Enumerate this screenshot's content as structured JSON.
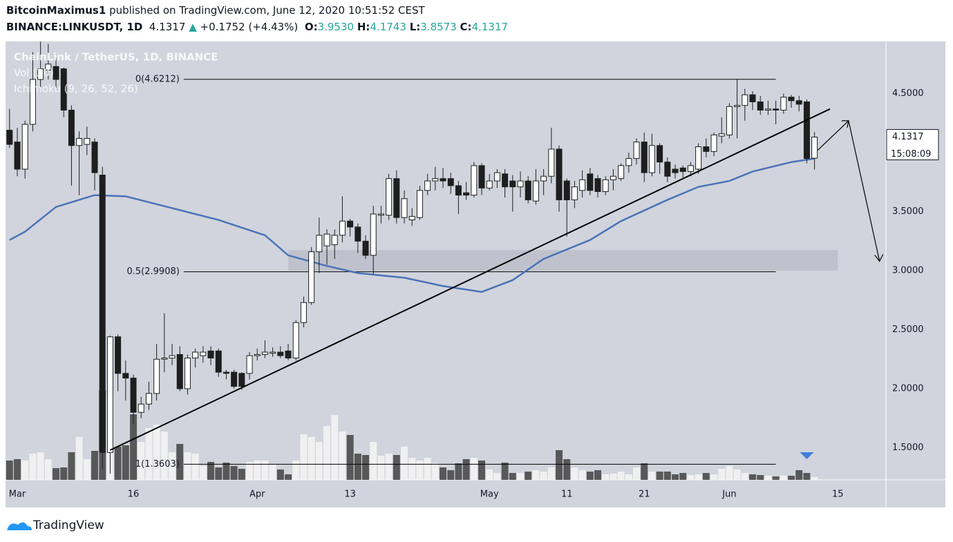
{
  "header": {
    "author": "BitcoinMaximus1",
    "published": "published on TradingView.com, June 12, 2020 10:51:52 CEST",
    "symbol": "BINANCE:LINKUSDT, 1D",
    "last": "4.1317",
    "change": "+0.1752 (+4.43%)",
    "o_label": "O:",
    "o": "3.9530",
    "h_label": "H:",
    "h": "4.1743",
    "l_label": "L:",
    "l": "3.8573",
    "c_label": "C:",
    "c": "4.1317"
  },
  "footer": {
    "brand": "TradingView"
  },
  "chart_data": {
    "type": "candlestick",
    "title": "ChainLink / TetherUS, 1D, BINANCE",
    "indicators": [
      "Vol (20)",
      "Ichimoku (9, 26, 52, 26)"
    ],
    "countdown": "15:08:09",
    "x": [
      -1,
      0,
      1,
      2,
      3,
      4,
      5,
      6,
      7,
      8,
      9,
      10,
      11,
      12,
      13,
      14,
      15,
      16,
      17,
      18,
      19,
      20,
      21,
      22,
      23,
      24,
      25,
      26,
      27,
      28,
      29,
      30,
      31,
      32,
      33,
      34,
      35,
      36,
      37,
      38,
      39,
      40,
      41,
      42,
      43,
      44,
      45,
      46,
      47,
      48,
      49,
      50,
      51,
      52,
      53,
      54,
      55,
      56,
      57,
      58,
      59,
      60,
      61,
      62,
      63,
      64,
      65,
      66,
      67,
      68,
      69,
      70,
      71,
      72,
      73,
      74,
      75,
      76,
      77,
      78,
      79,
      80,
      81,
      82,
      83,
      84,
      85,
      86,
      87,
      88,
      89,
      90,
      91,
      92,
      93,
      94,
      95,
      96,
      97,
      98,
      99,
      100,
      101,
      102,
      103
    ],
    "open": [
      4.19,
      4.09,
      3.86,
      4.24,
      4.62,
      4.7,
      4.73,
      4.71,
      4.36,
      4.06,
      4.07,
      4.09,
      3.81,
      1.46,
      2.44,
      2.13,
      2.09,
      1.8,
      1.87,
      1.96,
      2.25,
      2.26,
      2.29,
      2.0,
      2.26,
      2.28,
      2.32,
      2.32,
      2.14,
      2.14,
      2.13,
      2.13,
      2.28,
      2.29,
      2.3,
      2.31,
      2.32,
      2.26,
      2.56,
      2.73,
      3.16,
      3.21,
      3.22,
      3.3,
      3.42,
      3.37,
      3.25,
      3.13,
      3.47,
      3.47,
      3.78,
      3.45,
      3.43,
      3.45,
      3.68,
      3.76,
      3.78,
      3.78,
      3.72,
      3.66,
      3.64,
      3.89,
      3.7,
      3.76,
      3.82,
      3.76,
      3.71,
      3.76,
      3.59,
      3.76,
      3.8,
      4.03,
      3.76,
      3.6,
      3.68,
      3.82,
      3.78,
      3.67,
      3.77,
      3.78,
      3.89,
      3.95,
      4.09,
      3.83,
      4.06,
      3.92,
      3.86,
      3.87,
      3.84,
      3.86,
      4.05,
      4.01,
      4.14,
      4.15,
      4.39,
      4.4,
      4.49,
      4.43,
      4.36,
      4.37,
      4.36,
      4.47,
      4.44,
      4.43,
      3.953
    ],
    "high": [
      4.37,
      4.21,
      4.27,
      4.85,
      4.94,
      4.92,
      4.8,
      4.72,
      4.4,
      4.18,
      4.22,
      4.12,
      3.88,
      2.45,
      2.46,
      2.24,
      2.12,
      1.93,
      2.06,
      2.38,
      2.64,
      2.38,
      2.36,
      2.29,
      2.34,
      2.36,
      2.36,
      2.34,
      2.16,
      2.16,
      2.14,
      2.31,
      2.34,
      2.41,
      2.35,
      2.36,
      2.38,
      2.58,
      2.78,
      3.2,
      3.45,
      3.35,
      3.35,
      3.63,
      3.44,
      3.4,
      3.3,
      3.55,
      3.55,
      3.82,
      3.85,
      3.68,
      3.53,
      3.72,
      3.82,
      3.88,
      3.87,
      3.83,
      3.76,
      3.75,
      3.92,
      3.91,
      3.82,
      3.86,
      3.86,
      3.81,
      3.84,
      3.8,
      3.86,
      3.86,
      4.21,
      4.06,
      3.78,
      3.76,
      3.85,
      3.87,
      3.81,
      3.8,
      3.86,
      3.91,
      4.0,
      4.12,
      4.17,
      4.16,
      4.08,
      3.96,
      3.9,
      3.89,
      3.92,
      4.08,
      4.12,
      4.17,
      4.3,
      4.42,
      4.62,
      4.54,
      4.52,
      4.48,
      4.44,
      4.44,
      4.5,
      4.49,
      4.48,
      4.45,
      4.1743
    ],
    "low": [
      4.04,
      3.8,
      3.78,
      4.18,
      4.55,
      4.62,
      4.55,
      4.3,
      3.72,
      3.64,
      3.98,
      3.68,
      1.32,
      1.28,
      1.98,
      1.9,
      1.7,
      1.75,
      1.82,
      1.9,
      2.14,
      2.2,
      1.98,
      1.95,
      2.18,
      2.22,
      2.2,
      2.1,
      2.08,
      2.0,
      1.99,
      2.08,
      2.24,
      2.26,
      2.27,
      2.26,
      2.24,
      2.24,
      2.52,
      2.71,
      2.98,
      3.05,
      3.1,
      3.24,
      3.29,
      3.15,
      3.1,
      2.97,
      3.4,
      3.43,
      3.4,
      3.4,
      3.38,
      3.43,
      3.64,
      3.68,
      3.7,
      3.65,
      3.48,
      3.6,
      3.62,
      3.64,
      3.68,
      3.7,
      3.62,
      3.5,
      3.62,
      3.57,
      3.56,
      3.64,
      3.74,
      3.5,
      3.29,
      3.53,
      3.62,
      3.64,
      3.62,
      3.64,
      3.68,
      3.76,
      3.83,
      3.9,
      3.75,
      3.8,
      3.82,
      3.75,
      3.78,
      3.79,
      3.8,
      3.82,
      3.96,
      3.97,
      4.08,
      4.12,
      4.12,
      4.27,
      4.36,
      4.32,
      4.32,
      4.24,
      4.33,
      4.38,
      4.35,
      3.91,
      3.8573
    ],
    "close": [
      4.07,
      3.86,
      4.24,
      4.62,
      4.71,
      4.75,
      4.62,
      4.36,
      4.06,
      4.12,
      4.12,
      3.83,
      1.46,
      2.44,
      2.13,
      2.09,
      1.8,
      1.87,
      1.96,
      2.25,
      2.26,
      2.28,
      2.0,
      2.26,
      2.31,
      2.31,
      2.26,
      2.14,
      2.13,
      2.02,
      2.02,
      2.28,
      2.29,
      2.31,
      2.31,
      2.28,
      2.26,
      2.56,
      2.73,
      3.16,
      3.3,
      3.31,
      3.3,
      3.42,
      3.37,
      3.25,
      3.13,
      3.48,
      3.48,
      3.78,
      3.45,
      3.61,
      3.46,
      3.68,
      3.76,
      3.78,
      3.76,
      3.72,
      3.64,
      3.64,
      3.89,
      3.7,
      3.76,
      3.83,
      3.71,
      3.71,
      3.76,
      3.6,
      3.76,
      3.8,
      4.03,
      3.6,
      3.6,
      3.71,
      3.77,
      3.68,
      3.67,
      3.77,
      3.8,
      3.89,
      3.95,
      4.09,
      3.83,
      4.06,
      3.92,
      3.8,
      3.83,
      3.84,
      3.89,
      4.05,
      4.01,
      4.15,
      4.16,
      4.39,
      4.4,
      4.49,
      4.43,
      4.36,
      4.37,
      4.36,
      4.47,
      4.44,
      4.41,
      3.95,
      4.1317
    ],
    "volume": [
      28,
      30,
      28,
      38,
      40,
      30,
      17,
      18,
      40,
      62,
      30,
      42,
      130,
      125,
      48,
      50,
      95,
      55,
      75,
      80,
      70,
      40,
      52,
      40,
      38,
      20,
      26,
      18,
      25,
      20,
      16,
      26,
      28,
      28,
      22,
      15,
      8,
      28,
      66,
      62,
      55,
      78,
      94,
      70,
      65,
      38,
      36,
      55,
      35,
      38,
      36,
      48,
      32,
      28,
      32,
      24,
      18,
      14,
      24,
      30,
      32,
      28,
      15,
      10,
      25,
      10,
      10,
      12,
      14,
      12,
      18,
      43,
      30,
      18,
      14,
      12,
      14,
      8,
      9,
      12,
      8,
      18,
      24,
      12,
      12,
      12,
      8,
      10,
      7,
      8,
      10,
      8,
      16,
      20,
      15,
      10,
      8,
      7,
      6,
      5,
      6,
      6,
      14,
      10,
      4
    ],
    "candle_colors": {
      "up": "#ffffff",
      "down": "#1e1e1e"
    },
    "volume_colors": {
      "up": "#f3f3f3",
      "down": "#4a4a4a"
    },
    "ma": {
      "color": "#4a72b8",
      "x": [
        -1,
        1,
        5,
        10,
        14,
        20,
        26,
        32,
        35,
        40,
        44,
        50,
        55,
        60,
        64,
        68,
        74,
        78,
        84,
        88,
        92,
        95,
        100,
        103
      ],
      "values": [
        3.26,
        3.33,
        3.54,
        3.64,
        3.63,
        3.53,
        3.43,
        3.3,
        3.13,
        3.04,
        2.98,
        2.94,
        2.87,
        2.82,
        2.92,
        3.1,
        3.26,
        3.42,
        3.6,
        3.71,
        3.76,
        3.84,
        3.92,
        3.95
      ]
    },
    "fib_levels": [
      {
        "label": "0(4.6212)",
        "value": 4.6212
      },
      {
        "label": "0.5(2.9908)",
        "value": 2.9908
      },
      {
        "label": "1(1.3603)",
        "value": 1.3603
      }
    ],
    "fib_x": [
      21.5,
      98
    ],
    "zone": {
      "x": [
        35,
        106
      ],
      "y": [
        3.0,
        3.175
      ]
    },
    "trendline": {
      "x": [
        12,
        105
      ],
      "y": [
        1.48,
        4.37
      ]
    },
    "projection": {
      "x": [
        103.4,
        107.4,
        111.4
      ],
      "y": [
        4.02,
        4.27,
        3.08
      ]
    },
    "xlim": [
      -1.52,
      112.23
    ],
    "ylim": [
      1.228,
      4.942
    ],
    "xticks": [
      {
        "value": 0,
        "label": "Mar"
      },
      {
        "value": 15,
        "label": "16"
      },
      {
        "value": 31,
        "label": "Apr"
      },
      {
        "value": 43,
        "label": "13"
      },
      {
        "value": 61,
        "label": "May"
      },
      {
        "value": 71,
        "label": "11"
      },
      {
        "value": 81,
        "label": "21"
      },
      {
        "value": 92,
        "label": "Jun"
      },
      {
        "value": 106,
        "label": "15"
      }
    ],
    "yticks": [
      {
        "value": 1.5,
        "label": "1.5000"
      },
      {
        "value": 2,
        "label": "2.0000"
      },
      {
        "value": 2.5,
        "label": "2.5000"
      },
      {
        "value": 3,
        "label": "3.0000"
      },
      {
        "value": 3.5,
        "label": "3.5000"
      },
      {
        "value": 4.5,
        "label": "4.5000"
      }
    ]
  }
}
